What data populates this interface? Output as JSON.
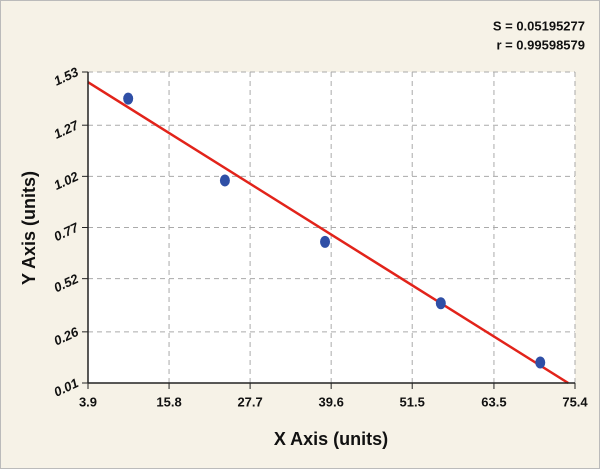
{
  "chart_data": {
    "type": "scatter",
    "annotations": [
      "S = 0.05195277",
      "r = 0.99598579"
    ],
    "xlabel": "X Axis (units)",
    "ylabel": "Y Axis (units)",
    "xlim": [
      3.9,
      75.4
    ],
    "ylim": [
      0.01,
      1.53
    ],
    "xticks": [
      3.9,
      15.8,
      27.7,
      39.6,
      51.5,
      63.5,
      75.4
    ],
    "yticks": [
      0.01,
      0.26,
      0.52,
      0.77,
      1.02,
      1.27,
      1.53
    ],
    "grid": true,
    "series": [
      {
        "type": "scatter",
        "color": "#2f4fa6",
        "x": [
          9.8,
          24.0,
          38.7,
          55.7,
          70.3
        ],
        "values": [
          1.4,
          1.0,
          0.7,
          0.4,
          0.11
        ]
      },
      {
        "type": "line",
        "color": "#e2231a",
        "x": [
          3.9,
          74.4
        ],
        "values": [
          1.48,
          0.01
        ]
      }
    ]
  }
}
